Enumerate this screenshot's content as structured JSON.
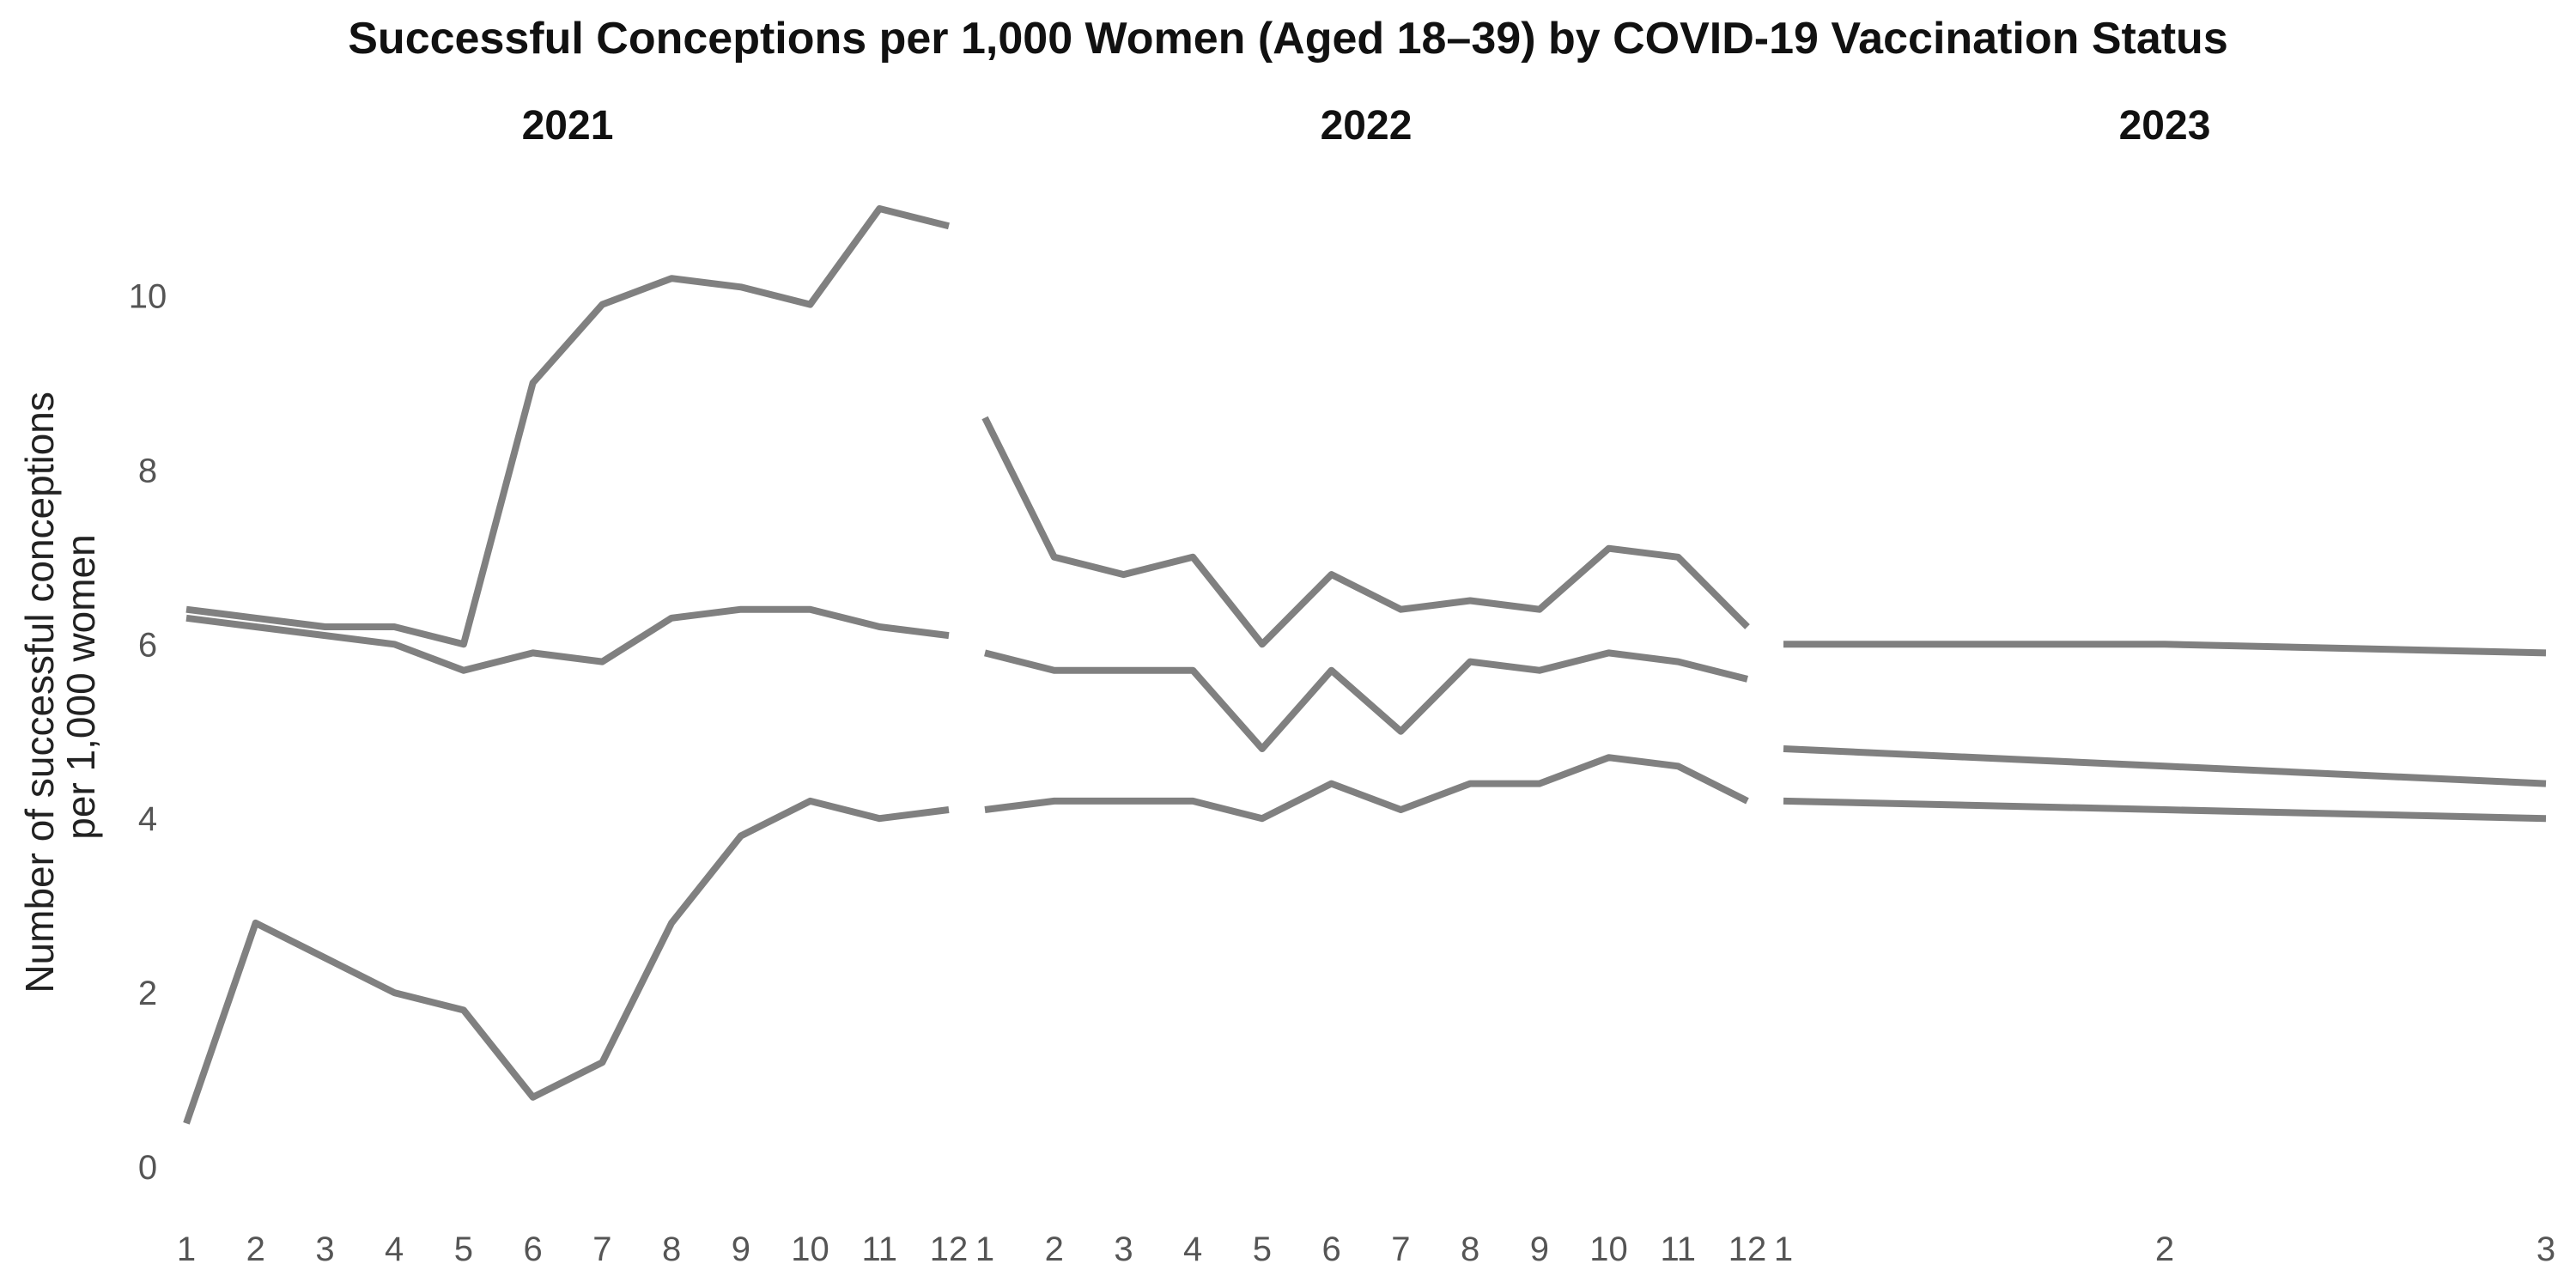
{
  "chart_data": {
    "type": "line",
    "title": "Successful Conceptions per 1,000 Women (Aged 18–39) by COVID-19 Vaccination Status",
    "ylabel_lines": [
      "Number of successful conceptions",
      "per 1,000 women"
    ],
    "ylim": [
      0,
      11
    ],
    "yticks": [
      0,
      2,
      4,
      6,
      8,
      10
    ],
    "grid": false,
    "legend": "none",
    "line_color": "#808080",
    "panels": [
      {
        "title": "2021",
        "x": [
          1,
          2,
          3,
          4,
          5,
          6,
          7,
          8,
          9,
          10,
          11,
          12
        ],
        "xlim": [
          1,
          12
        ],
        "series": [
          {
            "values": [
              6.4,
              6.3,
              6.2,
              6.2,
              6.0,
              9.0,
              9.9,
              10.2,
              10.1,
              9.9,
              11.0,
              10.8
            ]
          },
          {
            "values": [
              6.3,
              6.2,
              6.1,
              6.0,
              5.7,
              5.9,
              5.8,
              6.3,
              6.4,
              6.4,
              6.2,
              6.1
            ]
          },
          {
            "values": [
              0.5,
              2.8,
              2.4,
              2.0,
              1.8,
              0.8,
              1.2,
              2.8,
              3.8,
              4.2,
              4.0,
              4.1
            ]
          }
        ]
      },
      {
        "title": "2022",
        "x": [
          1,
          2,
          3,
          4,
          5,
          6,
          7,
          8,
          9,
          10,
          11,
          12
        ],
        "xlim": [
          1,
          12
        ],
        "series": [
          {
            "values": [
              8.6,
              7.0,
              6.8,
              7.0,
              6.0,
              6.8,
              6.4,
              6.5,
              6.4,
              7.1,
              7.0,
              6.2
            ]
          },
          {
            "values": [
              5.9,
              5.7,
              5.7,
              5.7,
              4.8,
              5.7,
              5.0,
              5.8,
              5.7,
              5.9,
              5.8,
              5.6
            ]
          },
          {
            "values": [
              4.1,
              4.2,
              4.2,
              4.2,
              4.0,
              4.4,
              4.1,
              4.4,
              4.4,
              4.7,
              4.6,
              4.2
            ]
          }
        ]
      },
      {
        "title": "2023",
        "x": [
          1,
          2,
          3
        ],
        "xlim": [
          1,
          3
        ],
        "series": [
          {
            "values": [
              6.0,
              6.0,
              5.9
            ]
          },
          {
            "values": [
              4.8,
              4.6,
              4.4
            ]
          },
          {
            "values": [
              4.2,
              4.1,
              4.0
            ]
          }
        ]
      }
    ]
  }
}
